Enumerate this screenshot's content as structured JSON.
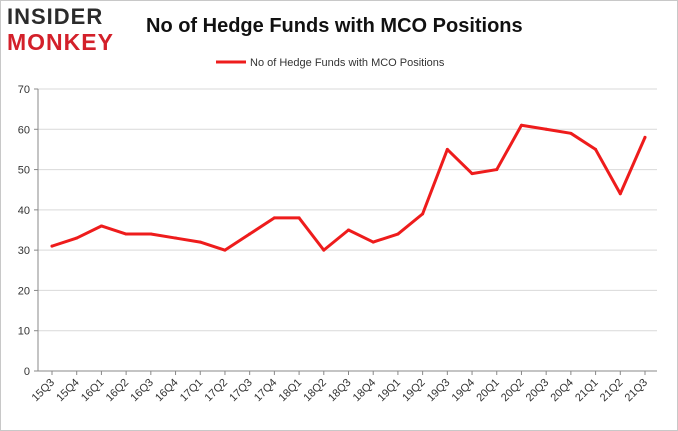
{
  "logo": {
    "top": "INSIDER",
    "bottom": "MONKEY",
    "top_color": "#2b2b2b",
    "bottom_color": "#d3202a"
  },
  "chart_data": {
    "type": "line",
    "title": "No of Hedge Funds with MCO Positions",
    "xlabel": "",
    "ylabel": "",
    "categories": [
      "15Q3",
      "15Q4",
      "16Q1",
      "16Q2",
      "16Q3",
      "16Q4",
      "17Q1",
      "17Q2",
      "17Q3",
      "17Q4",
      "18Q1",
      "18Q2",
      "18Q3",
      "18Q4",
      "19Q1",
      "19Q2",
      "19Q3",
      "19Q4",
      "20Q1",
      "20Q2",
      "20Q3",
      "20Q4",
      "21Q1",
      "21Q2",
      "21Q3"
    ],
    "series": [
      {
        "name": "No of Hedge Funds with MCO Positions",
        "color": "#ee1c1c",
        "values": [
          31,
          33,
          36,
          34,
          34,
          33,
          32,
          30,
          34,
          38,
          38,
          30,
          35,
          32,
          34,
          39,
          55,
          49,
          50,
          61,
          60,
          59,
          55,
          44,
          58
        ]
      }
    ],
    "ylim": [
      0,
      70
    ],
    "yticks": [
      0,
      10,
      20,
      30,
      40,
      50,
      60,
      70
    ],
    "grid": true,
    "legend": "top-center"
  }
}
